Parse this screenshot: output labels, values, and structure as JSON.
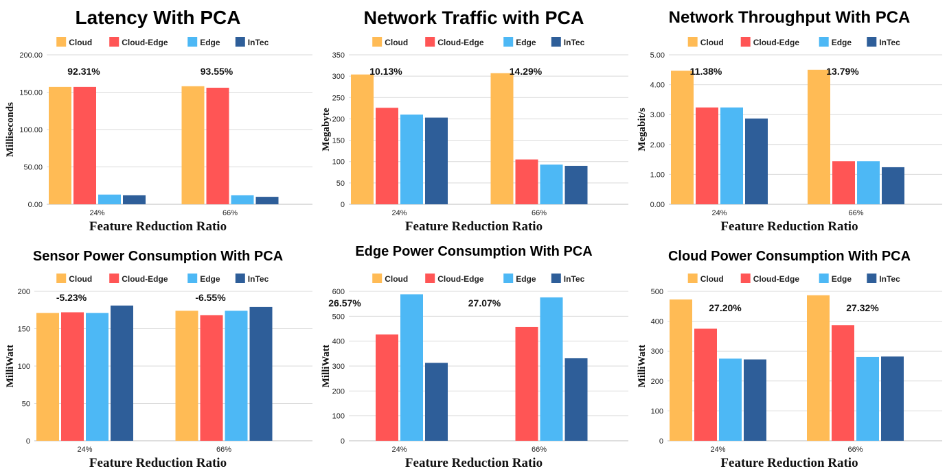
{
  "colors": {
    "Cloud": "#FFBB55",
    "Cloud-Edge": "#FF5555",
    "Edge": "#4DB8F5",
    "InTec": "#2E5E99"
  },
  "chart_data": [
    {
      "type": "bar",
      "title": "Latency With PCA",
      "xlabel": "Feature Reduction Ratio",
      "ylabel": "Milliseconds",
      "categories": [
        "24%",
        "66%"
      ],
      "ylim": [
        0,
        200
      ],
      "yticks": [
        "0.00",
        "50.00",
        "100.00",
        "150.00",
        "200.00"
      ],
      "series": [
        {
          "name": "Cloud",
          "values": [
            157,
            158
          ]
        },
        {
          "name": "Cloud-Edge",
          "values": [
            157,
            156
          ]
        },
        {
          "name": "Edge",
          "values": [
            13,
            12
          ]
        },
        {
          "name": "InTec",
          "values": [
            12,
            10
          ]
        }
      ],
      "annotations": [
        "92.31%",
        "93.55%"
      ],
      "legend": "top"
    },
    {
      "type": "bar",
      "title": "Network Traffic with PCA",
      "xlabel": "Feature Reduction Ratio",
      "ylabel": "Megabyte",
      "categories": [
        "24%",
        "66%"
      ],
      "ylim": [
        0,
        350
      ],
      "yticks": [
        "0",
        "50",
        "100",
        "150",
        "200",
        "250",
        "300",
        "350"
      ],
      "series": [
        {
          "name": "Cloud",
          "values": [
            304,
            307
          ]
        },
        {
          "name": "Cloud-Edge",
          "values": [
            226,
            105
          ]
        },
        {
          "name": "Edge",
          "values": [
            210,
            93
          ]
        },
        {
          "name": "InTec",
          "values": [
            203,
            90
          ]
        }
      ],
      "annotations": [
        "10.13%",
        "14.29%"
      ],
      "legend": "top"
    },
    {
      "type": "bar",
      "title": "Network Throughput With PCA",
      "xlabel": "Feature Reduction Ratio",
      "ylabel": "Megabit/s",
      "categories": [
        "24%",
        "66%"
      ],
      "ylim": [
        0,
        5
      ],
      "yticks": [
        "0.00",
        "1.00",
        "2.00",
        "3.00",
        "4.00",
        "5.00"
      ],
      "series": [
        {
          "name": "Cloud",
          "values": [
            4.47,
            4.5
          ]
        },
        {
          "name": "Cloud-Edge",
          "values": [
            3.24,
            1.44
          ]
        },
        {
          "name": "Edge",
          "values": [
            3.24,
            1.44
          ]
        },
        {
          "name": "InTec",
          "values": [
            2.87,
            1.24
          ]
        }
      ],
      "annotations": [
        "11.38%",
        "13.79%"
      ],
      "legend": "top"
    },
    {
      "type": "bar",
      "title": "Sensor Power Consumption With PCA",
      "xlabel": "Feature Reduction Ratio",
      "ylabel": "MilliWatt",
      "categories": [
        "24%",
        "66%"
      ],
      "ylim": [
        0,
        200
      ],
      "yticks": [
        "0",
        "50",
        "100",
        "150",
        "200"
      ],
      "series": [
        {
          "name": "Cloud",
          "values": [
            171,
            174
          ]
        },
        {
          "name": "Cloud-Edge",
          "values": [
            172,
            168
          ]
        },
        {
          "name": "Edge",
          "values": [
            171,
            174
          ]
        },
        {
          "name": "InTec",
          "values": [
            181,
            179
          ]
        }
      ],
      "annotations": [
        "-5.23%",
        "-6.55%"
      ],
      "legend": "top"
    },
    {
      "type": "bar",
      "title": "Edge Power Consumption With PCA",
      "xlabel": "Feature Reduction Ratio",
      "ylabel": "MilliWatt",
      "categories": [
        "24%",
        "66%"
      ],
      "ylim": [
        0,
        600
      ],
      "yticks": [
        "0",
        "100",
        "200",
        "300",
        "400",
        "500",
        "600"
      ],
      "series": [
        {
          "name": "Cloud",
          "values": [
            0,
            0
          ]
        },
        {
          "name": "Cloud-Edge",
          "values": [
            427,
            457
          ]
        },
        {
          "name": "Edge",
          "values": [
            588,
            576
          ]
        },
        {
          "name": "InTec",
          "values": [
            313,
            332
          ]
        }
      ],
      "annotations": [
        "26.57%",
        "27.07%"
      ],
      "legend": "top"
    },
    {
      "type": "bar",
      "title": "Cloud Power Consumption With PCA",
      "xlabel": "Feature Reduction Ratio",
      "ylabel": "MilliWatt",
      "categories": [
        "24%",
        "66%"
      ],
      "ylim": [
        0,
        500
      ],
      "yticks": [
        "0",
        "100",
        "200",
        "300",
        "400",
        "500"
      ],
      "series": [
        {
          "name": "Cloud",
          "values": [
            473,
            487
          ]
        },
        {
          "name": "Cloud-Edge",
          "values": [
            375,
            387
          ]
        },
        {
          "name": "Edge",
          "values": [
            275,
            280
          ]
        },
        {
          "name": "InTec",
          "values": [
            272,
            282
          ]
        }
      ],
      "annotations": [
        "27.20%",
        "27.32%"
      ],
      "legend": "top"
    }
  ]
}
